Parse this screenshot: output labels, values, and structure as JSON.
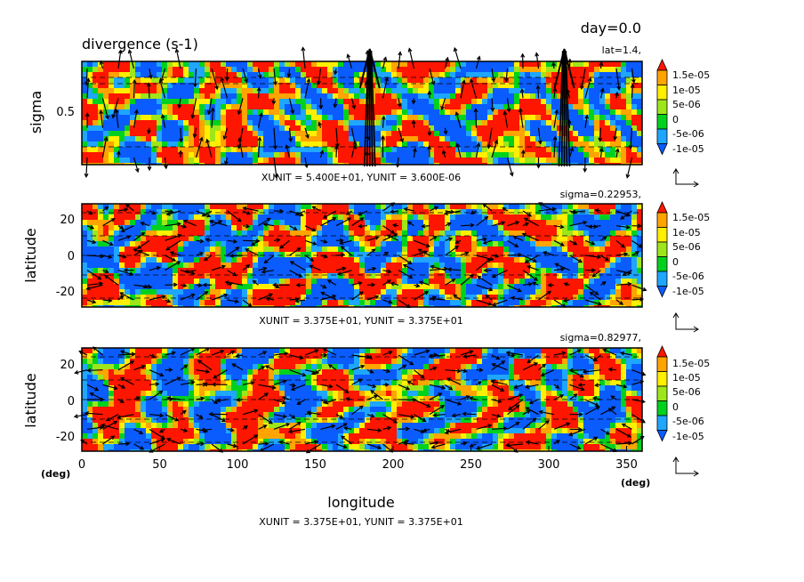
{
  "figure": {
    "title": "divergence (s-1)",
    "time_label": "day=0.0",
    "bottom_xlabel": "longitude"
  },
  "chart_data": [
    {
      "type": "heatmap",
      "panel": "sigma-longitude section",
      "subtitle": "lat=1.4,",
      "xlabel": "",
      "ylabel": "sigma",
      "xlim": [
        0,
        360
      ],
      "ylim": [
        0,
        1
      ],
      "ytick_labels": [
        "0.5"
      ],
      "vector_unit_label": "XUNIT = 5.400E+01, YUNIT = 3.600E-06",
      "contour_levels": [
        -1e-05,
        -5e-06,
        0,
        5e-06,
        1e-05,
        1.5e-05
      ],
      "colorbar_labels": [
        "1.5e-05",
        "1e-05",
        "5e-06",
        "0",
        "-5e-06",
        "-1e-05"
      ],
      "colors": [
        "#0a5cff",
        "#1fa6ff",
        "#00d11f",
        "#9ee61a",
        "#ffef00",
        "#ffa400",
        "#ff1600"
      ]
    },
    {
      "type": "heatmap",
      "panel": "latitude-longitude map",
      "subtitle": "sigma=0.22953,",
      "xlabel": "",
      "ylabel": "latitude",
      "xlim": [
        0,
        360
      ],
      "ylim": [
        -30,
        30
      ],
      "ytick_labels": [
        "20",
        "0",
        "-20"
      ],
      "vector_unit_label": "XUNIT = 3.375E+01, YUNIT = 3.375E+01",
      "contour_levels": [
        -1e-05,
        -5e-06,
        0,
        5e-06,
        1e-05,
        1.5e-05
      ],
      "colorbar_labels": [
        "1.5e-05",
        "1e-05",
        "5e-06",
        "0",
        "-5e-06",
        "-1e-05"
      ],
      "colors": [
        "#0a5cff",
        "#1fa6ff",
        "#00d11f",
        "#9ee61a",
        "#ffef00",
        "#ffa400",
        "#ff1600"
      ]
    },
    {
      "type": "heatmap",
      "panel": "latitude-longitude map",
      "subtitle": "sigma=0.82977,",
      "xlabel": "longitude",
      "ylabel": "latitude",
      "xlim": [
        0,
        360
      ],
      "ylim": [
        -30,
        30
      ],
      "ytick_labels": [
        "20",
        "0",
        "-20"
      ],
      "xtick_labels": [
        "0",
        "50",
        "100",
        "150",
        "200",
        "250",
        "300",
        "350"
      ],
      "x_unit_left": "(deg)",
      "x_unit_right": "(deg)",
      "vector_unit_label": "XUNIT = 3.375E+01, YUNIT = 3.375E+01",
      "contour_levels": [
        -1e-05,
        -5e-06,
        0,
        5e-06,
        1e-05,
        1.5e-05
      ],
      "colorbar_labels": [
        "1.5e-05",
        "1e-05",
        "5e-06",
        "0",
        "-5e-06",
        "-1e-05"
      ],
      "colors": [
        "#0a5cff",
        "#1fa6ff",
        "#00d11f",
        "#9ee61a",
        "#ffef00",
        "#ffa400",
        "#ff1600"
      ]
    }
  ]
}
